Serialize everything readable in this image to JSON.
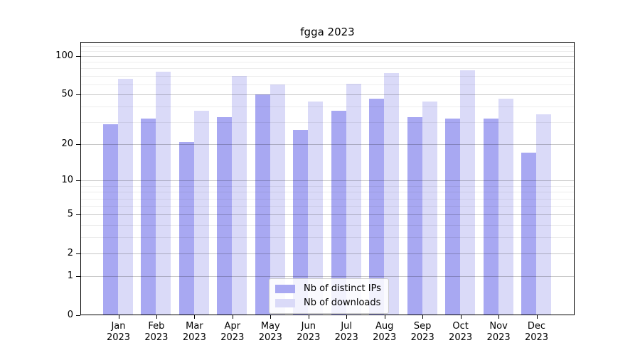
{
  "chart_data": {
    "type": "bar",
    "title": "fgga 2023",
    "categories": [
      "Jan",
      "Feb",
      "Mar",
      "Apr",
      "May",
      "Jun",
      "Jul",
      "Aug",
      "Sep",
      "Oct",
      "Nov",
      "Dec"
    ],
    "x_tick_year": "2023",
    "series": [
      {
        "name": "Nb of distinct IPs",
        "color": "#a8a8f2",
        "values": [
          29,
          32,
          21,
          33,
          50,
          26,
          37,
          46,
          33,
          32,
          32,
          17
        ]
      },
      {
        "name": "Nb of downloads",
        "color": "#dadaf8",
        "values": [
          66,
          75,
          37,
          70,
          60,
          44,
          61,
          74,
          44,
          77,
          46,
          35
        ]
      }
    ],
    "xlabel": "",
    "ylabel": "",
    "yscale": "log1p",
    "ylim": [
      0,
      129
    ],
    "y_major_ticks": [
      100,
      50,
      20,
      10,
      5,
      2,
      1,
      0
    ],
    "y_minor_ticks": [
      3,
      4,
      6,
      7,
      8,
      9,
      30,
      40,
      60,
      70,
      80,
      90,
      110,
      120
    ],
    "grid": "horizontal",
    "legend_position": "bottom-center",
    "colors": {
      "major_grid": "rgba(0,0,0,0.22)",
      "minor_grid": "rgba(0,0,0,0.07)",
      "axis": "#000000",
      "text": "#000000"
    }
  }
}
